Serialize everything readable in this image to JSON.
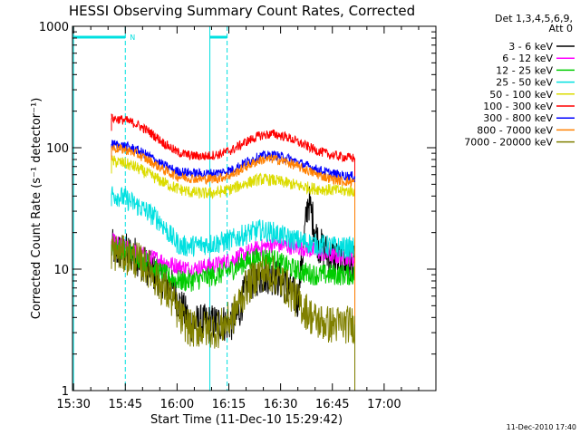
{
  "chart_data": {
    "type": "line",
    "title": "HESSI Observing Summary Count Rates, Corrected",
    "xlabel": "Start Time (11-Dec-10 15:29:42)",
    "ylabel": "Corrected Count Rate (s⁻¹ detector⁻¹)",
    "y_scale": "log",
    "ylim": [
      1,
      1000
    ],
    "xlim": [
      "15:29:42",
      "17:15:00"
    ],
    "x_ticks": [
      "15:30",
      "15:45",
      "16:00",
      "16:15",
      "16:30",
      "16:45",
      "17:00"
    ],
    "y_ticks": [
      "1",
      "10",
      "100",
      "1000"
    ],
    "grid": false,
    "legend_position": "top-right, outside plot",
    "legend_header": [
      "Det 1,3,4,5,6,9,",
      "Att 0"
    ],
    "annotation": "N",
    "timestamp": "11-Dec-2010 17:40",
    "x_units": "minutes after 15:00",
    "night_intervals": [
      {
        "start": 30,
        "end": 45
      },
      {
        "start": 69.5,
        "end": 74.5
      }
    ],
    "series": [
      {
        "name": "3 - 6 keV",
        "color": "#000000",
        "x": [
          41,
          43,
          45,
          48,
          52,
          55,
          58,
          61,
          64,
          68,
          71,
          74,
          77,
          80,
          83,
          86,
          89,
          92,
          95,
          98,
          101,
          104,
          106,
          108,
          110,
          111.5
        ],
        "y": [
          15,
          14,
          14,
          13,
          10,
          8.5,
          7.5,
          5,
          3.6,
          3.6,
          3.6,
          3.6,
          3.7,
          7,
          8.5,
          9,
          8.5,
          7,
          5.5,
          38,
          16,
          13,
          12.5,
          11,
          10.5,
          11
        ]
      },
      {
        "name": "6 - 12 keV",
        "color": "#ff00ff",
        "x": [
          41,
          43,
          45,
          48,
          52,
          55,
          58,
          61,
          64,
          68,
          72,
          76,
          80,
          84,
          88,
          92,
          96,
          100,
          104,
          108,
          111.5
        ],
        "y": [
          17,
          16,
          15,
          14,
          12.5,
          12,
          11,
          10.5,
          10,
          10.5,
          11,
          12,
          13.5,
          15,
          16,
          15.5,
          15,
          14,
          13,
          12.5,
          12
        ]
      },
      {
        "name": "12 - 25 keV",
        "color": "#00cc00",
        "x": [
          41,
          43,
          45,
          48,
          52,
          55,
          58,
          61,
          64,
          68,
          72,
          76,
          80,
          84,
          88,
          92,
          96,
          100,
          104,
          108,
          111.5
        ],
        "y": [
          16,
          15,
          14,
          13,
          11,
          9.5,
          8.5,
          8,
          8,
          8.5,
          9,
          10,
          11.5,
          12.5,
          12,
          10.5,
          9.5,
          9,
          9,
          9,
          9
        ]
      },
      {
        "name": "25 - 50 keV",
        "color": "#00e0e0",
        "x": [
          41,
          43,
          45,
          48,
          52,
          55,
          58,
          61,
          64,
          68,
          72,
          76,
          80,
          84,
          88,
          92,
          96,
          100,
          104,
          108,
          111.5
        ],
        "y": [
          42,
          40,
          38,
          34,
          29,
          25,
          19,
          15.5,
          15.5,
          16,
          16.5,
          17.5,
          19.5,
          21,
          20,
          18,
          17,
          16,
          15.5,
          15,
          15
        ]
      },
      {
        "name": "50 - 100 keV",
        "color": "#dcdc00",
        "x": [
          41,
          43,
          45,
          48,
          52,
          56,
          60,
          64,
          68,
          72,
          76,
          80,
          84,
          88,
          92,
          96,
          100,
          104,
          108,
          111.5
        ],
        "y": [
          78,
          76,
          74,
          69,
          60,
          52,
          46,
          43,
          42,
          43,
          46,
          51,
          55,
          54,
          51,
          48,
          46,
          45,
          44,
          44
        ]
      },
      {
        "name": "100 - 300 keV",
        "color": "#ff0000",
        "x": [
          41,
          43,
          45,
          48,
          52,
          56,
          60,
          64,
          68,
          72,
          76,
          80,
          84,
          88,
          92,
          96,
          100,
          104,
          108,
          111.5
        ],
        "y": [
          175,
          172,
          168,
          158,
          135,
          110,
          92,
          86,
          85,
          88,
          96,
          112,
          126,
          130,
          122,
          108,
          96,
          88,
          84,
          82
        ]
      },
      {
        "name": "300 - 800 keV",
        "color": "#0000ff",
        "x": [
          41,
          43,
          45,
          48,
          52,
          56,
          60,
          64,
          68,
          72,
          76,
          80,
          84,
          88,
          92,
          96,
          100,
          104,
          108,
          111.5
        ],
        "y": [
          107,
          105,
          103,
          97,
          85,
          72,
          64,
          62,
          61,
          62,
          66,
          76,
          85,
          87,
          82,
          74,
          67,
          62,
          59,
          58
        ]
      },
      {
        "name": "800 - 7000 keV",
        "color": "#ff8000",
        "x": [
          41,
          43,
          45,
          48,
          52,
          56,
          60,
          64,
          68,
          72,
          76,
          80,
          84,
          88,
          92,
          96,
          100,
          104,
          108,
          111.5
        ],
        "y": [
          100,
          98,
          96,
          90,
          78,
          66,
          58,
          56,
          55,
          56,
          60,
          70,
          79,
          81,
          76,
          68,
          61,
          56,
          53,
          52
        ]
      },
      {
        "name": "7000 - 20000 keV",
        "color": "#808000",
        "x": [
          41,
          43,
          45,
          48,
          52,
          55,
          58,
          61,
          64,
          68,
          72,
          76,
          80,
          84,
          88,
          92,
          96,
          100,
          104,
          108,
          111.5
        ],
        "y": [
          14,
          13.5,
          13,
          12,
          10,
          7.5,
          6,
          4,
          3.2,
          3.2,
          3.2,
          4,
          7,
          9.5,
          9,
          7,
          5,
          3.8,
          3.5,
          3.5,
          3.5
        ]
      }
    ]
  }
}
